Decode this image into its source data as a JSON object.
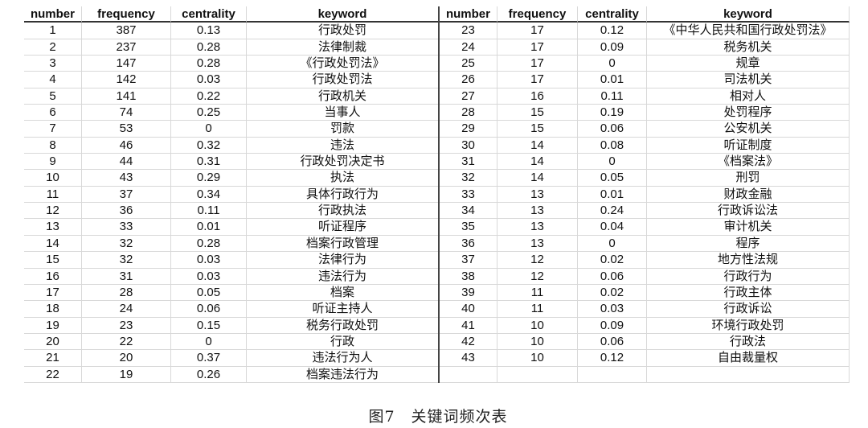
{
  "table": {
    "headers": [
      "number",
      "frequency",
      "centrality",
      "keyword"
    ],
    "left_rows": [
      [
        "1",
        "387",
        "0.13",
        "行政处罚"
      ],
      [
        "2",
        "237",
        "0.28",
        "法律制裁"
      ],
      [
        "3",
        "147",
        "0.28",
        "《行政处罚法》"
      ],
      [
        "4",
        "142",
        "0.03",
        "行政处罚法"
      ],
      [
        "5",
        "141",
        "0.22",
        "行政机关"
      ],
      [
        "6",
        "74",
        "0.25",
        "当事人"
      ],
      [
        "7",
        "53",
        "0",
        "罚款"
      ],
      [
        "8",
        "46",
        "0.32",
        "违法"
      ],
      [
        "9",
        "44",
        "0.31",
        "行政处罚决定书"
      ],
      [
        "10",
        "43",
        "0.29",
        "执法"
      ],
      [
        "11",
        "37",
        "0.34",
        "具体行政行为"
      ],
      [
        "12",
        "36",
        "0.11",
        "行政执法"
      ],
      [
        "13",
        "33",
        "0.01",
        "听证程序"
      ],
      [
        "14",
        "32",
        "0.28",
        "档案行政管理"
      ],
      [
        "15",
        "32",
        "0.03",
        "法律行为"
      ],
      [
        "16",
        "31",
        "0.03",
        "违法行为"
      ],
      [
        "17",
        "28",
        "0.05",
        "档案"
      ],
      [
        "18",
        "24",
        "0.06",
        "听证主持人"
      ],
      [
        "19",
        "23",
        "0.15",
        "税务行政处罚"
      ],
      [
        "20",
        "22",
        "0",
        "行政"
      ],
      [
        "21",
        "20",
        "0.37",
        "违法行为人"
      ],
      [
        "22",
        "19",
        "0.26",
        "档案违法行为"
      ]
    ],
    "right_rows": [
      [
        "23",
        "17",
        "0.12",
        "《中华人民共和国行政处罚法》"
      ],
      [
        "24",
        "17",
        "0.09",
        "税务机关"
      ],
      [
        "25",
        "17",
        "0",
        "规章"
      ],
      [
        "26",
        "17",
        "0.01",
        "司法机关"
      ],
      [
        "27",
        "16",
        "0.11",
        "相对人"
      ],
      [
        "28",
        "15",
        "0.19",
        "处罚程序"
      ],
      [
        "29",
        "15",
        "0.06",
        "公安机关"
      ],
      [
        "30",
        "14",
        "0.08",
        "听证制度"
      ],
      [
        "31",
        "14",
        "0",
        "《档案法》"
      ],
      [
        "32",
        "14",
        "0.05",
        "刑罚"
      ],
      [
        "33",
        "13",
        "0.01",
        "财政金融"
      ],
      [
        "34",
        "13",
        "0.24",
        "行政诉讼法"
      ],
      [
        "35",
        "13",
        "0.04",
        "审计机关"
      ],
      [
        "36",
        "13",
        "0",
        "程序"
      ],
      [
        "37",
        "12",
        "0.02",
        "地方性法规"
      ],
      [
        "38",
        "12",
        "0.06",
        "行政行为"
      ],
      [
        "39",
        "11",
        "0.02",
        "行政主体"
      ],
      [
        "40",
        "11",
        "0.03",
        "行政诉讼"
      ],
      [
        "41",
        "10",
        "0.09",
        "环境行政处罚"
      ],
      [
        "42",
        "10",
        "0.06",
        "行政法"
      ],
      [
        "43",
        "10",
        "0.12",
        "自由裁量权"
      ],
      [
        "",
        "",
        "",
        ""
      ]
    ]
  },
  "caption": {
    "label": "图7",
    "title": "关键词频次表"
  }
}
